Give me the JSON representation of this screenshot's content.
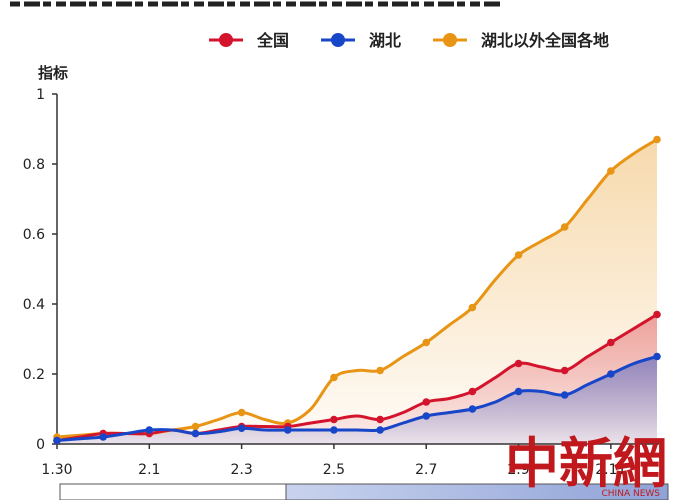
{
  "chart_data": {
    "type": "line",
    "title": "",
    "xlabel": "",
    "ylabel": "指标",
    "ylim": [
      0,
      1
    ],
    "yticks": [
      "0",
      "0.2",
      "0.4",
      "0.6",
      "0.8",
      "1"
    ],
    "xticks": [
      "1.30",
      "2.1",
      "2.3",
      "2.5",
      "2.7",
      "2.9",
      "2.11"
    ],
    "grid": false,
    "legend_position": "top-right",
    "x": [
      0,
      0.5,
      1,
      1.5,
      2,
      2.5,
      3,
      3.5,
      4,
      4.5,
      5,
      5.5,
      6,
      6.5,
      7,
      7.5,
      8,
      8.5,
      9,
      9.5,
      10,
      10.5,
      11,
      11.5,
      12,
      12.5,
      13
    ],
    "series": [
      {
        "name": "全国",
        "color": "#d4132c",
        "values": [
          0.01,
          0.02,
          0.03,
          0.03,
          0.03,
          0.04,
          0.03,
          0.04,
          0.05,
          0.05,
          0.05,
          0.06,
          0.07,
          0.08,
          0.07,
          0.09,
          0.12,
          0.13,
          0.15,
          0.19,
          0.23,
          0.22,
          0.21,
          0.25,
          0.29,
          0.33,
          0.37
        ]
      },
      {
        "name": "湖北",
        "color": "#1846c8",
        "values": [
          0.01,
          0.015,
          0.02,
          0.03,
          0.04,
          0.04,
          0.03,
          0.035,
          0.045,
          0.04,
          0.04,
          0.04,
          0.04,
          0.04,
          0.04,
          0.06,
          0.08,
          0.09,
          0.1,
          0.12,
          0.15,
          0.15,
          0.14,
          0.17,
          0.2,
          0.23,
          0.25
        ]
      },
      {
        "name": "湖北以外全国各地",
        "color": "#e89414",
        "values": [
          0.02,
          0.025,
          0.03,
          0.03,
          0.03,
          0.04,
          0.05,
          0.07,
          0.09,
          0.07,
          0.06,
          0.1,
          0.19,
          0.21,
          0.21,
          0.25,
          0.29,
          0.34,
          0.39,
          0.47,
          0.54,
          0.58,
          0.62,
          0.7,
          0.78,
          0.83,
          0.87
        ]
      }
    ],
    "marker_every": 2
  },
  "watermark": {
    "text": "中新網",
    "sub": "CHINA NEWS"
  }
}
